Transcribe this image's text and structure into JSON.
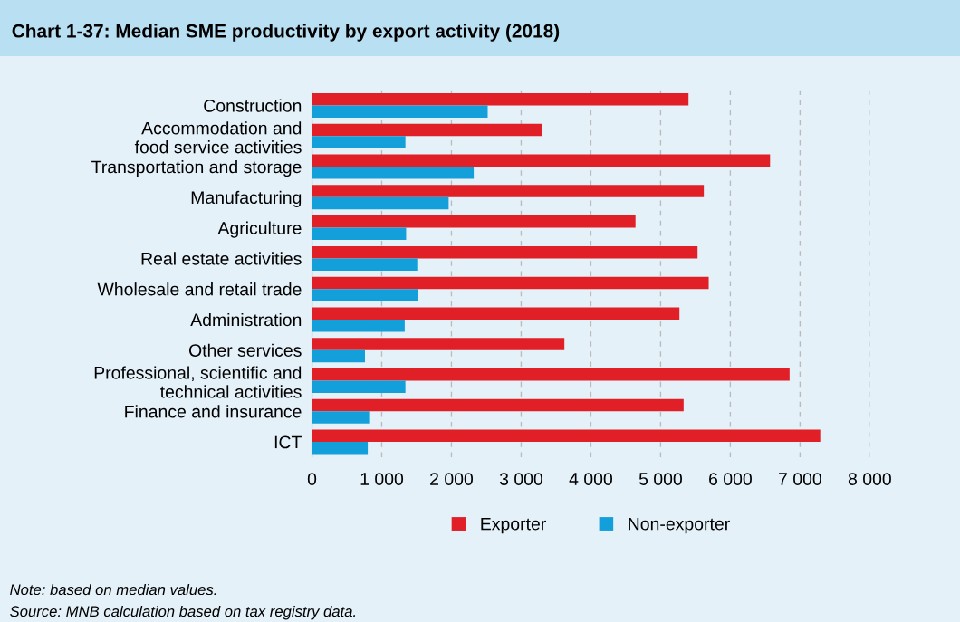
{
  "chart_data": {
    "type": "bar",
    "orientation": "horizontal",
    "title": "Chart 1-37: Median SME productivity by export activity (2018)",
    "categories": [
      "Construction",
      "Accommodation and\nfood service activities",
      "Transportation and storage",
      "Manufacturing",
      "Agriculture",
      "Real estate activities",
      "Wholesale and retail trade",
      "Administration",
      "Other services",
      "Professional, scientific and\ntechnical activities",
      "Finance and insurance",
      "ICT"
    ],
    "series": [
      {
        "name": "Exporter",
        "color": "#e01f26",
        "values": [
          5400,
          3300,
          6570,
          5620,
          4640,
          5530,
          5690,
          5270,
          3620,
          6850,
          5330,
          7290
        ]
      },
      {
        "name": "Non-exporter",
        "color": "#139fd9",
        "values": [
          2520,
          1340,
          2320,
          1960,
          1350,
          1510,
          1520,
          1330,
          760,
          1340,
          820,
          800
        ]
      }
    ],
    "xlim": [
      0,
      8000
    ],
    "xticks": [
      0,
      {
        "value": 1000,
        "label": "1 000"
      },
      {
        "value": 2000,
        "label": "2 000"
      },
      {
        "value": 3000,
        "label": "3 000"
      },
      {
        "value": 4000,
        "label": "4 000"
      },
      {
        "value": 5000,
        "label": "5 000"
      },
      {
        "value": 6000,
        "label": "6 000"
      },
      {
        "value": 7000,
        "label": "7 000"
      },
      {
        "value": 8000,
        "label": "8 000"
      }
    ],
    "grid": "x",
    "legend": "bottom",
    "annotations": [
      "Note: based on median values.",
      "Source: MNB calculation based on tax registry data."
    ]
  }
}
